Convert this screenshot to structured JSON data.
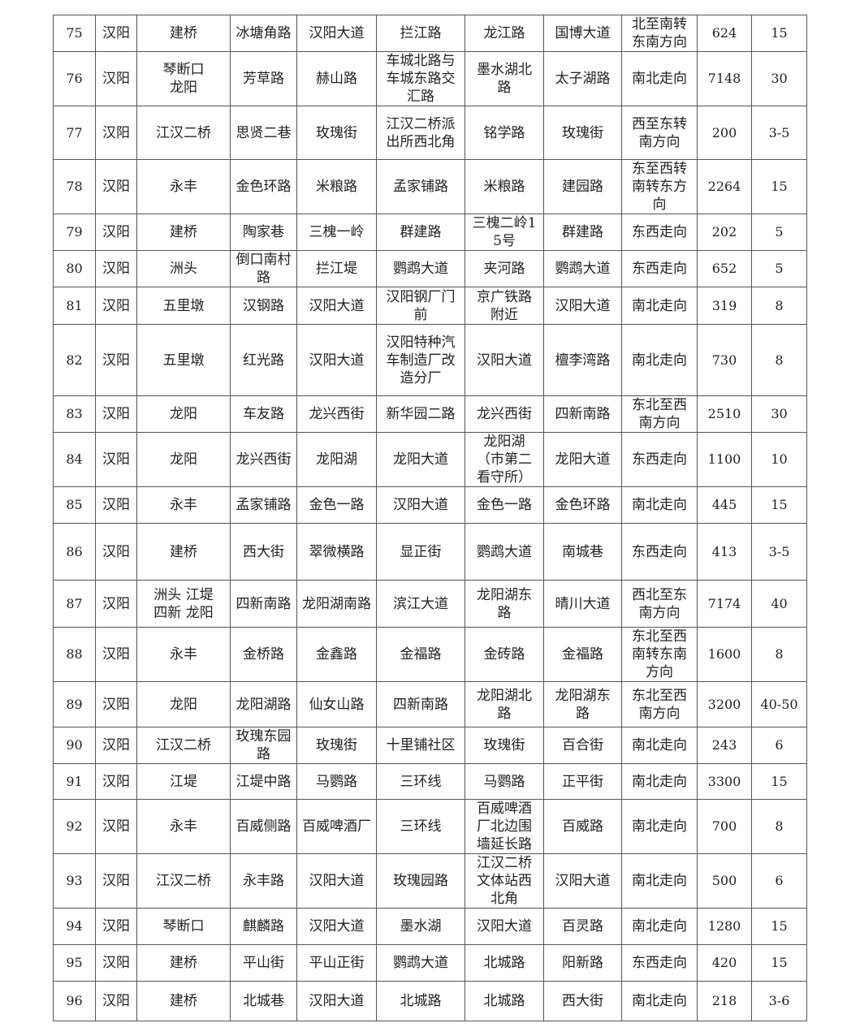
{
  "table": {
    "rows": [
      [
        "75",
        "汉阳",
        "建桥",
        "冰塘角路",
        "汉阳大道",
        "拦江路",
        "龙江路",
        "国博大道",
        "北至南转东南方向",
        "624",
        "15"
      ],
      [
        "76",
        "汉阳",
        "琴断口\n龙阳",
        "芳草路",
        "赫山路",
        "车城北路与车城东路交汇路",
        "墨水湖北路",
        "太子湖路",
        "南北走向",
        "7148",
        "30"
      ],
      [
        "77",
        "汉阳",
        "江汉二桥",
        "思贤二巷",
        "玫瑰街",
        "江汉二桥派出所西北角",
        "铭学路",
        "玫瑰街",
        "西至东转南方向",
        "200",
        "3-5"
      ],
      [
        "78",
        "汉阳",
        "永丰",
        "金色环路",
        "米粮路",
        "孟家铺路",
        "米粮路",
        "建园路",
        "东至西转南转东方向",
        "2264",
        "15"
      ],
      [
        "79",
        "汉阳",
        "建桥",
        "陶家巷",
        "三槐一岭",
        "群建路",
        "三槐二岭15号",
        "群建路",
        "东西走向",
        "202",
        "5"
      ],
      [
        "80",
        "汉阳",
        "洲头",
        "倒口南村路",
        "拦江堤",
        "鹦鹉大道",
        "夹河路",
        "鹦鹉大道",
        "东西走向",
        "652",
        "5"
      ],
      [
        "81",
        "汉阳",
        "五里墩",
        "汉钢路",
        "汉阳大道",
        "汉阳钢厂门前",
        "京广铁路附近",
        "汉阳大道",
        "南北走向",
        "319",
        "8"
      ],
      [
        "82",
        "汉阳",
        "五里墩",
        "红光路",
        "汉阳大道",
        "汉阳特种汽车制造厂改造分厂",
        "汉阳大道",
        "檀李湾路",
        "南北走向",
        "730",
        "8"
      ],
      [
        "83",
        "汉阳",
        "龙阳",
        "车友路",
        "龙兴西街",
        "新华园二路",
        "龙兴西街",
        "四新南路",
        "东北至西南方向",
        "2510",
        "30"
      ],
      [
        "84",
        "汉阳",
        "龙阳",
        "龙兴西街",
        "龙阳湖",
        "龙阳大道",
        "龙阳湖（市第二看守所）",
        "龙阳大道",
        "东西走向",
        "1100",
        "10"
      ],
      [
        "85",
        "汉阳",
        "永丰",
        "孟家铺路",
        "金色一路",
        "汉阳大道",
        "金色一路",
        "金色环路",
        "南北走向",
        "445",
        "15"
      ],
      [
        "86",
        "汉阳",
        "建桥",
        "西大街",
        "翠微横路",
        "显正街",
        "鹦鹉大道",
        "南城巷",
        "东西走向",
        "413",
        "3-5"
      ],
      [
        "87",
        "汉阳",
        "洲头  江堤\n四新  龙阳",
        "四新南路",
        "龙阳湖南路",
        "滨江大道",
        "龙阳湖东路",
        "晴川大道",
        "西北至东南方向",
        "7174",
        "40"
      ],
      [
        "88",
        "汉阳",
        "永丰",
        "金桥路",
        "金鑫路",
        "金福路",
        "金砖路",
        "金福路",
        "东北至西南转东南方向",
        "1600",
        "8"
      ],
      [
        "89",
        "汉阳",
        "龙阳",
        "龙阳湖路",
        "仙女山路",
        "四新南路",
        "龙阳湖北路",
        "龙阳湖东路",
        "东北至西南方向",
        "3200",
        "40-50"
      ],
      [
        "90",
        "汉阳",
        "江汉二桥",
        "玫瑰东园路",
        "玫瑰街",
        "十里铺社区",
        "玫瑰街",
        "百合街",
        "南北走向",
        "243",
        "6"
      ],
      [
        "91",
        "汉阳",
        "江堤",
        "江堤中路",
        "马鹦路",
        "三环线",
        "马鹦路",
        "正平街",
        "南北走向",
        "3300",
        "15"
      ],
      [
        "92",
        "汉阳",
        "永丰",
        "百威侧路",
        "百威啤酒厂",
        "三环线",
        "百威啤酒厂北边围墙延长路",
        "百威路",
        "南北走向",
        "700",
        "8"
      ],
      [
        "93",
        "汉阳",
        "江汉二桥",
        "永丰路",
        "汉阳大道",
        "玫瑰园路",
        "江汉二桥文体站西北角",
        "汉阳大道",
        "南北走向",
        "500",
        "6"
      ],
      [
        "94",
        "汉阳",
        "琴断口",
        "麒麟路",
        "汉阳大道",
        "墨水湖",
        "汉阳大道",
        "百灵路",
        "南北走向",
        "1280",
        "15"
      ],
      [
        "95",
        "汉阳",
        "建桥",
        "平山街",
        "平山正街",
        "鹦鹉大道",
        "北城路",
        "阳新路",
        "东西走向",
        "420",
        "15"
      ],
      [
        "96",
        "汉阳",
        "建桥",
        "北城巷",
        "汉阳大道",
        "北城路",
        "北城路",
        "西大街",
        "南北走向",
        "218",
        "3-6"
      ]
    ]
  }
}
